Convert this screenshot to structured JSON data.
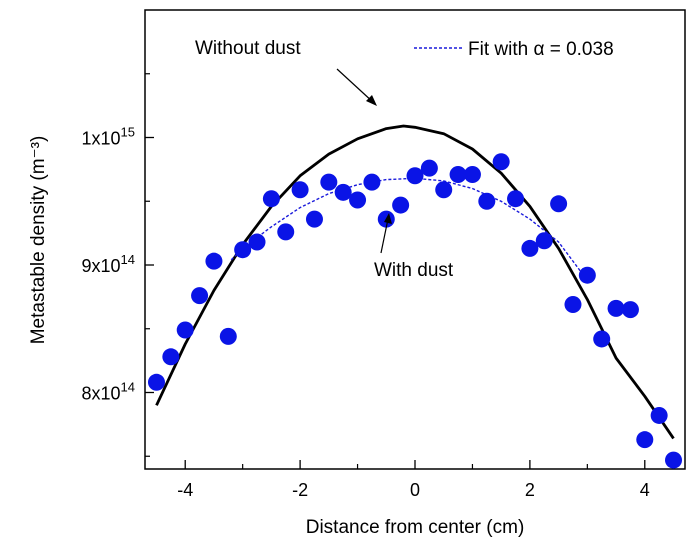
{
  "chart_data": {
    "type": "scatter",
    "xlabel": "Distance from center (cm)",
    "ylabel": "Metastable density (m⁻³)",
    "xlim": [
      -4.7,
      4.7
    ],
    "ylim": [
      740000000000000.0,
      1100000000000000.0
    ],
    "x_ticks": [
      {
        "value": -4,
        "label": "-4"
      },
      {
        "value": -2,
        "label": "-2"
      },
      {
        "value": 0,
        "label": "0"
      },
      {
        "value": 2,
        "label": "2"
      },
      {
        "value": 4,
        "label": "4"
      }
    ],
    "y_ticks": [
      {
        "value": 800000000000000.0,
        "label": "8x10",
        "sup": "14"
      },
      {
        "value": 900000000000000.0,
        "label": "9x10",
        "sup": "14"
      },
      {
        "value": 1000000000000000.0,
        "label": "1x10",
        "sup": "15"
      }
    ],
    "grid": false,
    "legend": {
      "position": "top-right"
    },
    "annotations": {
      "without_dust": "Without dust",
      "with_dust": "With dust"
    },
    "series": [
      {
        "name": "Without dust",
        "kind": "line",
        "color": "#000000",
        "style": "solid",
        "x": [
          -4.5,
          -4.0,
          -3.5,
          -3.0,
          -2.5,
          -2.0,
          -1.5,
          -1.0,
          -0.5,
          -0.2,
          0.0,
          0.5,
          1.0,
          1.5,
          2.0,
          2.5,
          3.0,
          3.5,
          4.0,
          4.5
        ],
        "y": [
          790000000000000.0,
          838000000000000.0,
          880000000000000.0,
          916000000000000.0,
          946000000000000.0,
          970000000000000.0,
          987000000000000.0,
          999000000000000.0,
          1007000000000000.0,
          1009000000000000.0,
          1008000000000000.0,
          1003000000000000.0,
          991000000000000.0,
          972000000000000.0,
          946000000000000.0,
          913000000000000.0,
          873000000000000.0,
          827000000000000.0,
          797000000000000.0,
          764000000000000.0
        ]
      },
      {
        "name": "Fit with α = 0.038",
        "kind": "line",
        "color": "#1a1adb",
        "style": "dashed",
        "x": [
          -3.2,
          -3.0,
          -2.5,
          -2.0,
          -1.5,
          -1.0,
          -0.5,
          0.0,
          0.5,
          1.0,
          1.5,
          2.0,
          2.5,
          3.0
        ],
        "y": [
          904000000000000.0,
          913000000000000.0,
          930000000000000.0,
          945000000000000.0,
          956000000000000.0,
          963000000000000.0,
          967000000000000.0,
          968000000000000.0,
          966000000000000.0,
          960000000000000.0,
          950000000000000.0,
          936000000000000.0,
          918000000000000.0,
          888000000000000.0
        ]
      },
      {
        "name": "With dust",
        "kind": "scatter",
        "color": "#0a14e6",
        "x": [
          -4.5,
          -4.25,
          -4.0,
          -3.75,
          -3.5,
          -3.25,
          -3.0,
          -2.75,
          -2.5,
          -2.25,
          -2.0,
          -1.75,
          -1.5,
          -1.25,
          -1.0,
          -0.75,
          -0.5,
          -0.25,
          0.0,
          0.25,
          0.5,
          0.75,
          1.0,
          1.25,
          1.5,
          1.75,
          2.0,
          2.25,
          2.5,
          2.75,
          3.0,
          3.25,
          3.5,
          3.75,
          4.0,
          4.25,
          4.5
        ],
        "y": [
          808000000000000.0,
          828000000000000.0,
          849000000000000.0,
          876000000000000.0,
          903000000000000.0,
          844000000000000.0,
          912000000000000.0,
          918000000000000.0,
          952000000000000.0,
          926000000000000.0,
          959000000000000.0,
          936000000000000.0,
          965000000000000.0,
          957000000000000.0,
          951000000000000.0,
          965000000000000.0,
          936000000000000.0,
          947000000000000.0,
          970000000000000.0,
          976000000000000.0,
          959000000000000.0,
          971000000000000.0,
          971000000000000.0,
          950000000000000.0,
          981000000000000.0,
          952000000000000.0,
          913000000000000.0,
          919000000000000.0,
          948000000000000.0,
          869000000000000.0,
          892000000000000.0,
          842000000000000.0,
          866000000000000.0,
          865000000000000.0,
          763000000000000.0,
          782000000000000.0,
          747000000000000.0
        ]
      }
    ]
  }
}
